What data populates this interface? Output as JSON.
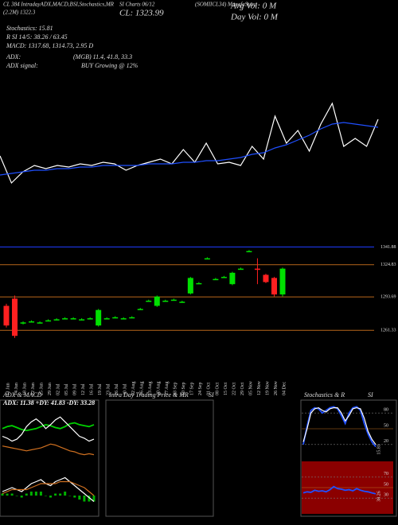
{
  "header": {
    "t1": "CL 384 IntradayADX,MACD,B",
    "t2": "SI,Stochastics,MR",
    "t3": "SI Charts 06/12",
    "t4": "(SOMIICL34) MunafaSutra",
    "t5": "(2.2M)  1322.3",
    "close": "CL: 1323.99",
    "avg_vol": "Avg Vol: 0  M",
    "day_vol": "Day Vol: 0  M",
    "stoch": "Stochastics: 15.81",
    "rsi": "R SI 14/5: 38.26 / 63.45",
    "macd": "MACD: 1317.68, 1314.73, 2.95 D",
    "adx": "ADX:",
    "adx_vals": "(MGB) 11.4, 41.8, 33.3",
    "adx_signal": "ADX  signal:",
    "adx_signal_val": "BUY Growing @ 12%"
  },
  "panels": {
    "adx_title": "ADX  & MACD",
    "adx_values": "ADX: 11.38  +DY: 41.83  -DY: 33.28",
    "intraday_title": "Intra  Day Trading Price  & MR",
    "intraday_si": "SI",
    "stoch_title": "Stochastics  & R",
    "stoch_si": "SI"
  },
  "chart_data": [
    {
      "type": "candlestick",
      "categories": [
        "11 Jun",
        "14 Jun",
        "18 Jun",
        "22 Jun",
        "25 Jun",
        "29 Jun",
        "02 Jul",
        "05 Jul",
        "09 Jul",
        "12 Jul",
        "16 Jul",
        "19 Jul",
        "23 Jul",
        "26 Jul",
        "30 Jul",
        "02 Aug",
        "06 Aug",
        "13 Aug",
        "20 Aug",
        "27 Aug",
        "03 Sep",
        "10 Sep",
        "17 Sep",
        "24 Sep",
        "01 Oct",
        "08 Oct",
        "15 Oct",
        "22 Oct",
        "29 Oct",
        "05 Nov",
        "12 Nov",
        "19 Nov",
        "26 Nov",
        "04 Dec"
      ],
      "open": [
        1285,
        1292,
        1268,
        1270,
        1269,
        1271,
        1272,
        1273,
        1273,
        1272,
        1273,
        1266,
        1273,
        1274,
        1273,
        1274,
        1282,
        1290,
        1285,
        1290,
        1291,
        1289,
        1297,
        1307,
        1331,
        1311,
        1313,
        1306,
        1321,
        1338,
        1321,
        1315,
        1312,
        1296
      ],
      "high": [
        1287,
        1295,
        1270,
        1271,
        1270,
        1272,
        1273,
        1274,
        1274,
        1273,
        1274,
        1282,
        1274,
        1275,
        1274,
        1275,
        1283,
        1291,
        1295,
        1291,
        1292,
        1290,
        1313,
        1308,
        1332,
        1312,
        1314,
        1318,
        1322,
        1339,
        1331,
        1316,
        1313,
        1322
      ],
      "low": [
        1264,
        1254,
        1267,
        1269,
        1268,
        1270,
        1271,
        1272,
        1272,
        1271,
        1272,
        1265,
        1272,
        1273,
        1272,
        1273,
        1281,
        1289,
        1284,
        1289,
        1290,
        1288,
        1296,
        1306,
        1330,
        1310,
        1312,
        1305,
        1320,
        1337,
        1306,
        1307,
        1294,
        1294
      ],
      "close": [
        1266,
        1256,
        1269,
        1270,
        1269,
        1271,
        1272,
        1273,
        1273,
        1272,
        1273,
        1281,
        1273,
        1274,
        1273,
        1274,
        1282,
        1290,
        1294,
        1290,
        1291,
        1289,
        1312,
        1307,
        1331,
        1311,
        1313,
        1317,
        1321,
        1338,
        1320,
        1308,
        1296,
        1321
      ],
      "up_color": "#00e000",
      "down_color": "#ff2020",
      "ylim": [
        1250,
        1350
      ],
      "yticks": [
        1341.88,
        1324.83,
        1293.69,
        1261.33
      ],
      "ytick_colors": [
        "#1e3cff",
        "#b8651a",
        "#b8651a",
        "#b8651a"
      ]
    },
    {
      "type": "line",
      "ylim": [
        1250,
        1350
      ],
      "series": [
        {
          "color": "#ffffff",
          "values": [
            1272,
            1255,
            1262,
            1266,
            1264,
            1266,
            1265,
            1267,
            1266,
            1268,
            1267,
            1263,
            1266,
            1268,
            1270,
            1267,
            1276,
            1268,
            1280,
            1267,
            1268,
            1266,
            1278,
            1270,
            1297,
            1280,
            1288,
            1275,
            1292,
            1305,
            1278,
            1283,
            1278,
            1295
          ]
        },
        {
          "color": "#1f4fff",
          "values": [
            1260,
            1261,
            1262,
            1263,
            1263,
            1264,
            1264,
            1265,
            1265,
            1266,
            1266,
            1266,
            1266,
            1267,
            1267,
            1267,
            1268,
            1268,
            1269,
            1269,
            1270,
            1271,
            1273,
            1274,
            1277,
            1279,
            1282,
            1285,
            1289,
            1292,
            1293,
            1292,
            1291,
            1290
          ]
        }
      ]
    },
    {
      "type": "line",
      "ylim": [
        0,
        60
      ],
      "series": [
        {
          "color": "#00d000",
          "values": [
            38,
            40,
            41,
            39,
            37,
            36,
            37,
            38,
            40,
            42,
            41,
            39,
            38,
            40,
            43,
            44,
            42,
            41,
            40,
            42
          ]
        },
        {
          "color": "#ffffff",
          "values": [
            30,
            28,
            25,
            27,
            32,
            40,
            45,
            48,
            44,
            38,
            42,
            47,
            50,
            45,
            40,
            35,
            30,
            28,
            25,
            27
          ]
        },
        {
          "color": "#d07020",
          "values": [
            20,
            19,
            18,
            17,
            16,
            15,
            16,
            17,
            18,
            20,
            22,
            21,
            19,
            17,
            15,
            14,
            12,
            11,
            12,
            11
          ]
        }
      ]
    },
    {
      "type": "line",
      "ylim": [
        -10,
        10
      ],
      "series": [
        {
          "style": "bar",
          "color": "#00b000",
          "values": [
            1,
            1,
            1,
            0,
            -1,
            1,
            2,
            2,
            2,
            0,
            -1,
            1,
            1,
            2,
            0,
            -1,
            -2,
            -3,
            -3,
            -3
          ]
        },
        {
          "color": "#ffffff",
          "values": [
            2,
            3,
            4,
            3,
            2,
            4,
            6,
            7,
            8,
            6,
            5,
            7,
            8,
            9,
            7,
            5,
            3,
            1,
            -1,
            -3
          ]
        },
        {
          "color": "#d07020",
          "values": [
            1,
            2,
            3,
            3,
            3,
            3,
            4,
            5,
            6,
            6,
            6,
            6,
            7,
            7,
            7,
            6,
            5,
            4,
            2,
            0
          ]
        }
      ]
    },
    {
      "type": "line",
      "ylim": [
        0,
        100
      ],
      "yticks": [
        20,
        50,
        80
      ],
      "background": "#000000",
      "series": [
        {
          "color": "#2050ff",
          "values": [
            20,
            55,
            85,
            90,
            88,
            80,
            85,
            90,
            92,
            88,
            75,
            60,
            80,
            90,
            92,
            85,
            60,
            40,
            25,
            15.81
          ],
          "end_label": true
        },
        {
          "color": "#ffffff",
          "values": [
            25,
            50,
            80,
            88,
            90,
            85,
            82,
            88,
            90,
            90,
            80,
            65,
            75,
            88,
            90,
            88,
            70,
            45,
            30,
            20
          ]
        }
      ]
    },
    {
      "type": "line",
      "ylim": [
        0,
        100
      ],
      "yticks": [
        30,
        50,
        70
      ],
      "background": "#8b0000",
      "series": [
        {
          "color": "#2050ff",
          "values": [
            40,
            42,
            41,
            45,
            43,
            44,
            42,
            46,
            52,
            48,
            47,
            45,
            46,
            44,
            48,
            45,
            43,
            42,
            40,
            38.26
          ],
          "end_label": true
        }
      ]
    }
  ]
}
